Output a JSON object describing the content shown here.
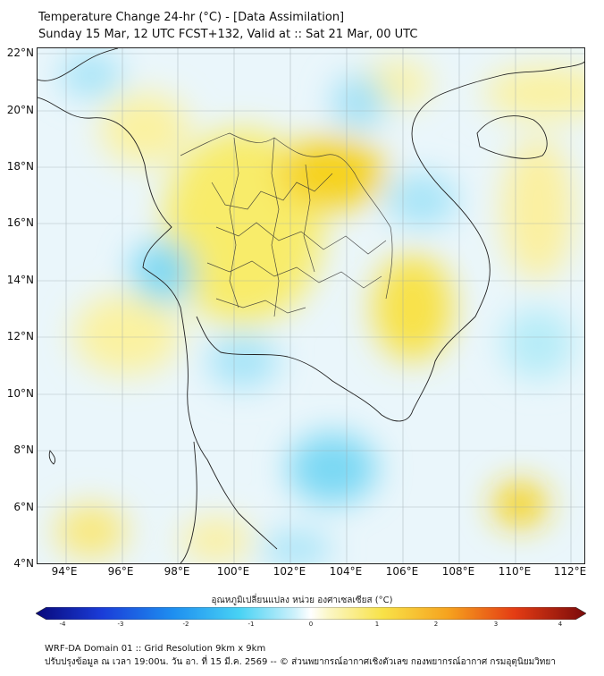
{
  "header": {
    "title_line1": "Temperature Change 24-hr (°C) - [Data Assimilation]",
    "title_line2": "Sunday 15 Mar, 12 UTC FCST+132, Valid at :: Sat 21 Mar, 00 UTC"
  },
  "map": {
    "lat_ticks": [
      "22°N",
      "20°N",
      "18°N",
      "16°N",
      "14°N",
      "12°N",
      "10°N",
      "8°N",
      "6°N",
      "4°N"
    ],
    "lon_ticks": [
      "94°E",
      "96°E",
      "98°E",
      "100°E",
      "102°E",
      "104°E",
      "106°E",
      "108°E",
      "110°E",
      "112°E"
    ],
    "lat_range": [
      4,
      22.2
    ],
    "lon_range": [
      93,
      112.5
    ]
  },
  "colorbar": {
    "label": "อุณหภูมิเปลี่ยนแปลง หน่วย องศาเซลเซียส (°C)",
    "ticks": [
      "-4",
      "-3",
      "-2",
      "-1",
      "0",
      "1",
      "2",
      "3",
      "4"
    ],
    "range": [
      -4,
      4
    ]
  },
  "footer": {
    "line1": "WRF-DA Domain 01 :: Grid Resolution 9km x 9km",
    "line2": "ปรับปรุงข้อมูล ณ เวลา 19:00น. วัน อา. ที่ 15 มี.ค. 2569 -- © ส่วนพยากรณ์อากาศเชิงตัวเลข กองพยากรณ์อากาศ กรมอุตุนิยมวิทยา"
  },
  "colors": {
    "warm": "#f6d21e",
    "cool": "#3cc8f0",
    "coastline": "#222222"
  }
}
